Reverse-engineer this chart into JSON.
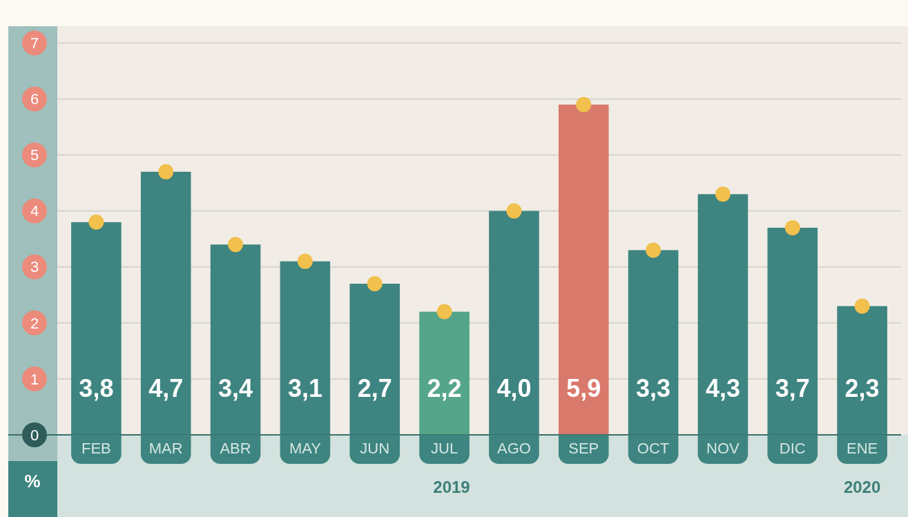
{
  "chart_data": {
    "type": "bar",
    "ylabel": "%",
    "categories": [
      "FEB",
      "MAR",
      "ABR",
      "MAY",
      "JUN",
      "JUL",
      "AGO",
      "SEP",
      "OCT",
      "NOV",
      "DIC",
      "ENE"
    ],
    "series": [
      {
        "values": [
          3.8,
          4.7,
          3.4,
          3.1,
          2.7,
          2.2,
          4.0,
          5.9,
          3.3,
          4.3,
          3.7,
          2.3
        ],
        "value_labels": [
          "3,8",
          "4,7",
          "3,4",
          "3,1",
          "2,7",
          "2,2",
          "4,0",
          "5,9",
          "3,3",
          "4,3",
          "3,7",
          "2,3"
        ],
        "colors": [
          "#3e8480",
          "#3e8480",
          "#3e8480",
          "#3e8480",
          "#3e8480",
          "#55a58a",
          "#3e8480",
          "#d9796c",
          "#3e8480",
          "#3e8480",
          "#3e8480",
          "#3e8480"
        ]
      },
      {
        "type": "scatter",
        "color": "#f2c04d",
        "x": [
          "FEB",
          "MAR",
          "ABR",
          "MAY",
          "JUN",
          "JUL",
          "AGO",
          "SEP",
          "OCT",
          "NOV",
          "DIC",
          "ENE"
        ],
        "values": [
          3.8,
          4.7,
          3.4,
          3.1,
          2.7,
          2.2,
          4.0,
          5.9,
          3.3,
          4.3,
          3.7,
          2.3
        ]
      }
    ],
    "ylim": [
      0,
      7.3
    ],
    "yticks": [
      0,
      1,
      2,
      3,
      4,
      5,
      6,
      7
    ],
    "grid": "y",
    "marker": "circle",
    "annotations": [
      "2019",
      "2020"
    ]
  }
}
